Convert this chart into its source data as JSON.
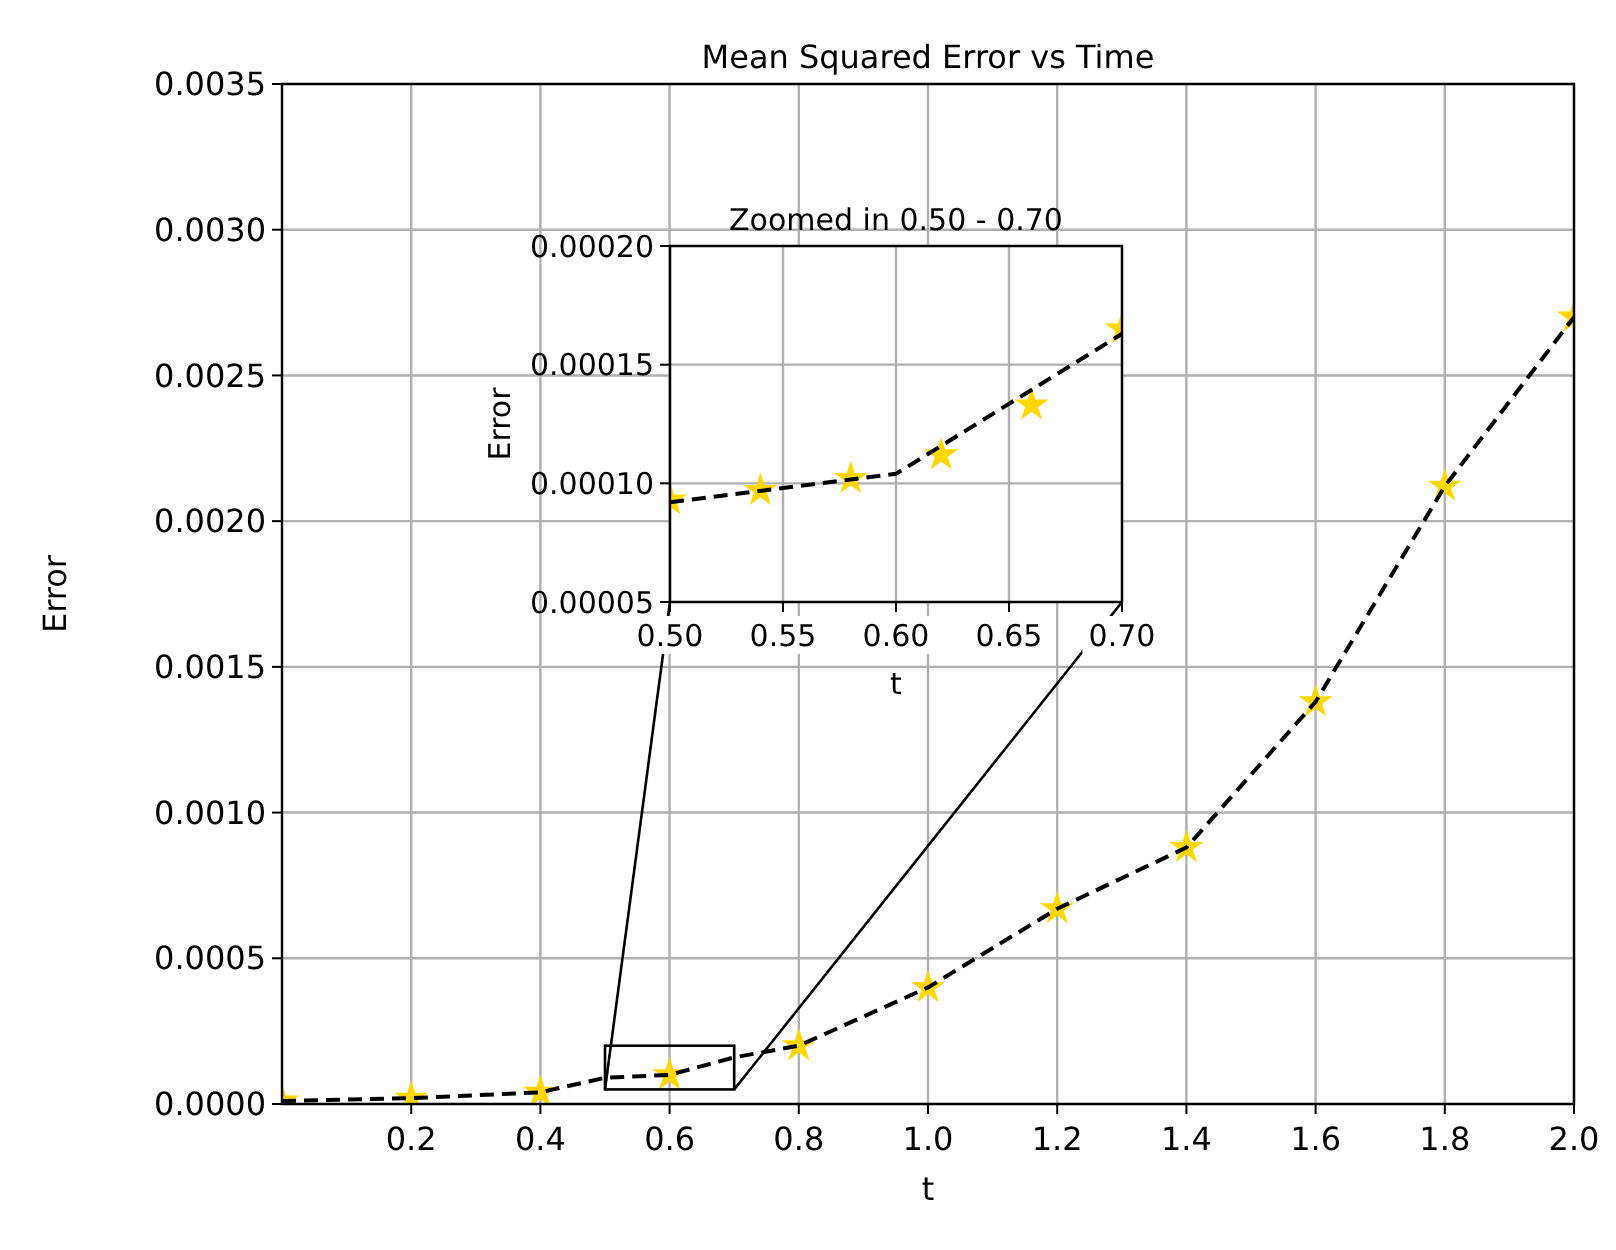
{
  "chart_data": [
    {
      "type": "line",
      "title": "Mean Squared Error vs Time",
      "xlabel": "t",
      "ylabel": "Error",
      "xlim": [
        0,
        2.0
      ],
      "xticks": [
        0.2,
        0.4,
        0.6,
        0.8,
        {
          "value": 1.0,
          "label": "1.0"
        },
        1.2,
        1.4,
        1.6,
        1.8,
        {
          "value": 2.0,
          "label": "2.0"
        }
      ],
      "ylim": [
        0,
        0.0035
      ],
      "yticks": [
        {
          "value": 0,
          "label": "0.0000"
        },
        {
          "value": 0.0005,
          "label": "0.0005"
        },
        {
          "value": 0.001,
          "label": "0.0010"
        },
        {
          "value": 0.0015,
          "label": "0.0015"
        },
        {
          "value": 0.002,
          "label": "0.0020"
        },
        {
          "value": 0.0025,
          "label": "0.0025"
        },
        {
          "value": 0.003,
          "label": "0.0030"
        },
        {
          "value": 0.0035,
          "label": "0.0035"
        }
      ],
      "grid": true,
      "series": [
        {
          "type": "scatter",
          "color": "#ffd700",
          "marker": "star",
          "x": [
            0,
            0.2,
            0.4,
            0.6,
            0.8,
            1.0,
            1.2,
            1.4,
            1.6,
            1.8,
            2.0
          ],
          "values": [
            1e-05,
            2e-05,
            4e-05,
            0.0001,
            0.0002,
            0.0004,
            0.00067,
            0.00088,
            0.00138,
            0.00212,
            0.0027
          ]
        },
        {
          "type": "line",
          "color": "#000000",
          "marker": "none",
          "line_style": "dashed",
          "x": [
            0,
            0.2,
            0.4,
            0.5,
            0.6,
            0.7,
            0.8,
            1.0,
            1.2,
            1.4,
            1.6,
            1.8,
            2.0
          ],
          "values": [
            1e-05,
            2e-05,
            4e-05,
            9e-05,
            0.0001,
            0.00016,
            0.0002,
            0.0004,
            0.00067,
            0.00088,
            0.00138,
            0.00212,
            0.0027
          ]
        }
      ]
    },
    {
      "type": "line",
      "title": "Zoomed in 0.50 - 0.70",
      "xlabel": "t",
      "ylabel": "Error",
      "xlim": [
        0.5,
        0.7
      ],
      "xticks": [
        {
          "value": 0.5,
          "label": "0.50"
        },
        {
          "value": 0.55,
          "label": "0.55"
        },
        {
          "value": 0.6,
          "label": "0.60"
        },
        {
          "value": 0.65,
          "label": "0.65"
        },
        {
          "value": 0.7,
          "label": "0.70"
        }
      ],
      "ylim": [
        5e-05,
        0.0002
      ],
      "yticks": [
        {
          "value": 5e-05,
          "label": "0.00005"
        },
        {
          "value": 0.0001,
          "label": "0.00010"
        },
        {
          "value": 0.00015,
          "label": "0.00015"
        },
        {
          "value": 0.0002,
          "label": "0.00020"
        }
      ],
      "grid": true,
      "series": [
        {
          "type": "scatter",
          "color": "#ffd700",
          "marker": "star",
          "x": [
            0.5,
            0.54,
            0.58,
            0.62,
            0.66,
            0.7
          ],
          "values": [
            9.3e-05,
            9.7e-05,
            0.000102,
            0.000112,
            0.000133,
            0.000165
          ]
        },
        {
          "type": "line",
          "color": "#000000",
          "marker": "none",
          "line_style": "dashed",
          "x": [
            0.5,
            0.6,
            0.7
          ],
          "values": [
            9.2e-05,
            0.000104,
            0.000163
          ]
        }
      ]
    }
  ]
}
